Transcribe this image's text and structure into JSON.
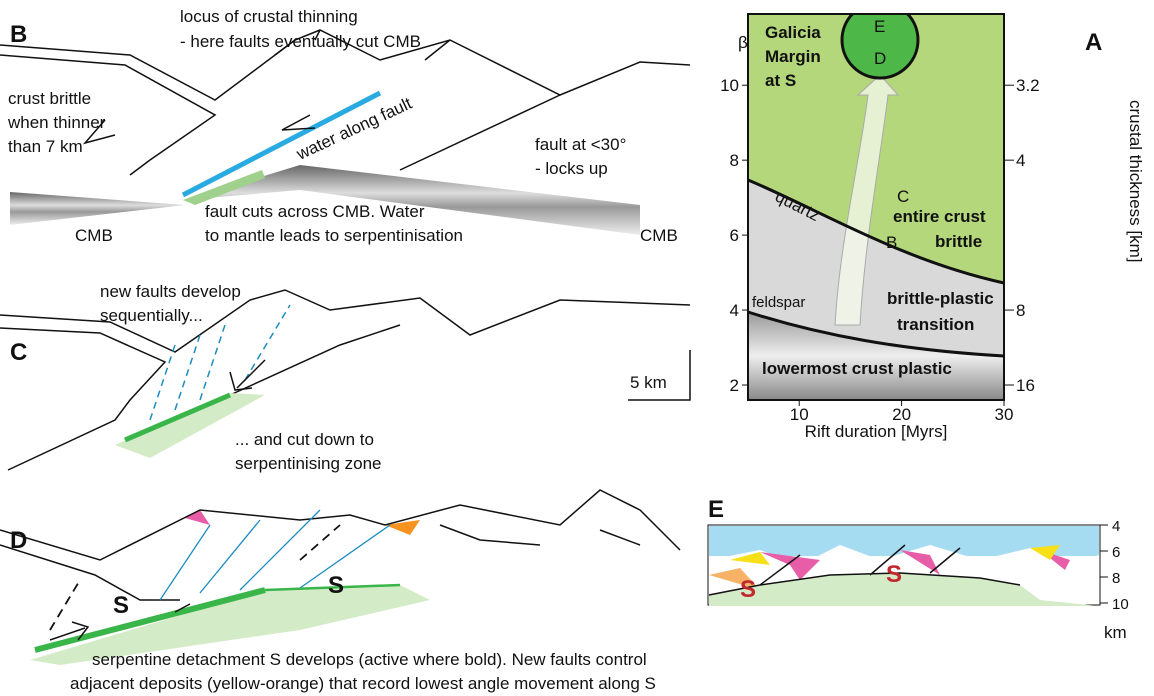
{
  "panel_b": {
    "label": "B",
    "locus": [
      "locus of crustal thinning",
      "- here faults eventually cut CMB"
    ],
    "brittle": [
      "crust brittle",
      "when thinner",
      "than 7 km"
    ],
    "water": "water along fault",
    "locks": [
      "fault at <30°",
      "- locks up"
    ],
    "cuts": [
      "fault cuts across CMB.  Water",
      "to mantle leads to serpentinisation"
    ],
    "cmb": [
      "CMB",
      "CMB"
    ]
  },
  "panel_c": {
    "label": "C",
    "new_faults": [
      "new faults develop",
      "sequentially..."
    ],
    "cut_down": [
      "... and cut down to",
      "serpentinising zone"
    ],
    "scale": "5 km"
  },
  "panel_d": {
    "label": "D",
    "s_labels": [
      "S",
      "S"
    ],
    "caption": [
      "serpentine detachment S develops (active where bold).  New faults control",
      "adjacent deposits (yellow-orange) that record lowest angle movement along S"
    ]
  },
  "panel_a": {
    "label": "A",
    "beta": "β",
    "galicia": [
      "Galicia",
      "Margin",
      "at S"
    ],
    "points": [
      "E",
      "D",
      "C",
      "B"
    ],
    "quartz": "quartz",
    "feldspar": "feldspar",
    "entire": [
      "entire crust",
      "brittle"
    ],
    "transition": [
      "brittle-plastic",
      "transition"
    ],
    "lowermost": "lowermost crust plastic",
    "x_label": "Rift duration [Myrs]",
    "y2_label": "crustal thickness [km]",
    "xlim": [
      5,
      30
    ],
    "xticks": [
      10,
      20,
      30
    ],
    "ylim": [
      1.6,
      11.9
    ],
    "yticks": [
      2,
      4,
      6,
      8,
      10
    ],
    "y2ticks": [
      3.2,
      4,
      8,
      16
    ]
  },
  "panel_e": {
    "label": "E",
    "ticks": [
      4,
      6,
      8,
      10
    ],
    "unit": "km",
    "s_labels": [
      "S",
      "S"
    ]
  }
}
